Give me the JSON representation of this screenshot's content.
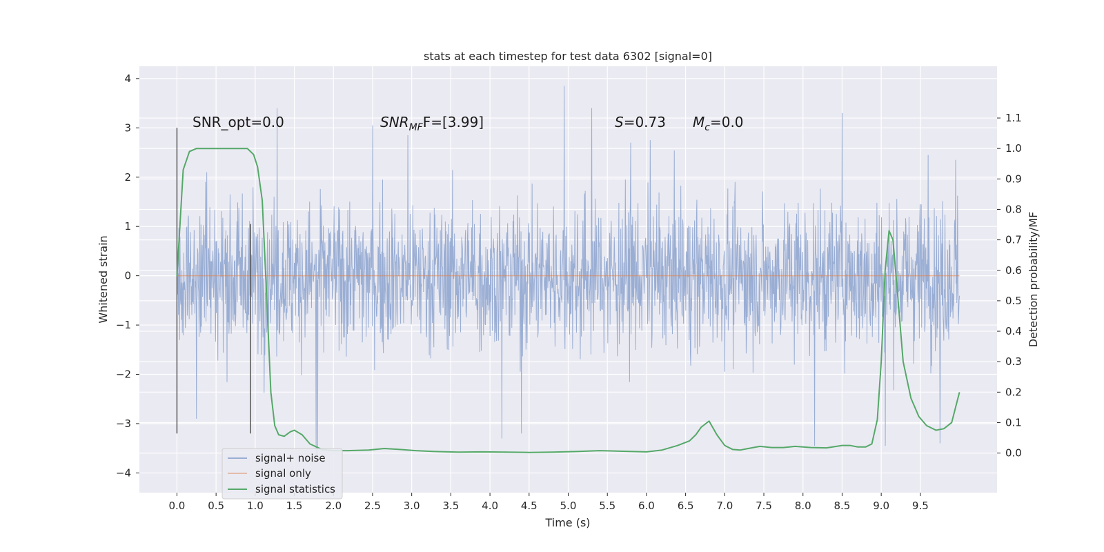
{
  "chart_data": {
    "type": "line",
    "title": "stats at each timestep for test data 6302 [signal=0]",
    "xlabel": "Time (s)",
    "ylabel": "Whitened strain",
    "y2label": "Detection probability/MF",
    "xlim": [
      -0.48,
      10.48
    ],
    "ylim": [
      -4.4,
      4.25
    ],
    "y2lim": [
      -0.13,
      1.27
    ],
    "x_ticks": [
      0.0,
      0.5,
      1.0,
      1.5,
      2.0,
      2.5,
      3.0,
      3.5,
      4.0,
      4.5,
      5.0,
      5.5,
      6.0,
      6.5,
      7.0,
      7.5,
      8.0,
      8.5,
      9.0,
      9.5
    ],
    "x_tick_labels": [
      "0.0",
      "0.5",
      "1.0",
      "1.5",
      "2.0",
      "2.5",
      "3.0",
      "3.5",
      "4.0",
      "4.5",
      "5.0",
      "5.5",
      "6.0",
      "6.5",
      "7.0",
      "7.5",
      "8.0",
      "8.5",
      "9.0",
      "9.5"
    ],
    "y_ticks": [
      -4,
      -3,
      -2,
      -1,
      0,
      1,
      2,
      3,
      4
    ],
    "y_tick_labels": [
      "−4",
      "−3",
      "−2",
      "−1",
      "0",
      "1",
      "2",
      "3",
      "4"
    ],
    "y2_ticks": [
      0.0,
      0.1,
      0.2,
      0.3,
      0.4,
      0.5,
      0.6,
      0.7,
      0.8,
      0.9,
      1.0,
      1.1
    ],
    "y2_tick_labels": [
      "0.0",
      "0.1",
      "0.2",
      "0.3",
      "0.4",
      "0.5",
      "0.6",
      "0.7",
      "0.8",
      "0.9",
      "1.0",
      "1.1"
    ],
    "grid": true,
    "legend_position": "bottom-left",
    "legend": [
      "signal+ noise",
      "signal only",
      "signal statistics"
    ],
    "annotations": {
      "snr_opt": "SNR_opt=0.0",
      "snr_mf_sym": "SNR",
      "snr_mf_sub": "MF",
      "snr_mf_val": "F=[3.99]",
      "s_sym": "S",
      "s_val": "=0.73",
      "mc_sym": "M",
      "mc_sub": "c",
      "mc_val": "=0.0"
    },
    "noise": {
      "x_start": 0.0,
      "x_end": 10.0,
      "y_range": [
        -3.7,
        3.85
      ],
      "notable_peaks": [
        [
          0.38,
          2.1
        ],
        [
          1.28,
          3.4
        ],
        [
          2.5,
          3.05
        ],
        [
          2.95,
          2.85
        ],
        [
          4.95,
          3.85
        ],
        [
          5.3,
          3.4
        ],
        [
          5.8,
          2.7
        ],
        [
          6.05,
          2.75
        ],
        [
          8.5,
          3.3
        ],
        [
          9.6,
          2.45
        ],
        [
          9.95,
          2.35
        ]
      ],
      "notable_troughs": [
        [
          1.8,
          -3.7
        ],
        [
          1.78,
          -3.65
        ],
        [
          4.15,
          -3.3
        ],
        [
          4.4,
          -3.2
        ],
        [
          8.15,
          -3.45
        ],
        [
          9.05,
          -3.45
        ],
        [
          9.75,
          -3.4
        ],
        [
          0.25,
          -2.9
        ]
      ]
    },
    "signal_only": {
      "x": [
        0.0,
        10.0
      ],
      "y": [
        0.0,
        0.0
      ]
    },
    "vertical_markers": [
      {
        "x": 0.0,
        "y": [
          -3.2,
          3.0
        ]
      },
      {
        "x": 0.94,
        "y": [
          -3.2,
          1.05
        ]
      }
    ],
    "series": [
      {
        "name": "signal statistics",
        "x": [
          0.0,
          0.08,
          0.16,
          0.25,
          0.4,
          0.55,
          0.7,
          0.8,
          0.9,
          0.98,
          1.03,
          1.09,
          1.14,
          1.2,
          1.25,
          1.3,
          1.37,
          1.45,
          1.5,
          1.6,
          1.7,
          1.85,
          2.0,
          2.2,
          2.45,
          2.65,
          2.85,
          3.05,
          3.3,
          3.6,
          3.9,
          4.2,
          4.5,
          4.8,
          5.1,
          5.4,
          5.7,
          6.0,
          6.2,
          6.4,
          6.55,
          6.63,
          6.7,
          6.8,
          6.9,
          7.0,
          7.1,
          7.2,
          7.3,
          7.45,
          7.6,
          7.75,
          7.9,
          8.1,
          8.3,
          8.5,
          8.6,
          8.7,
          8.8,
          8.88,
          8.95,
          9.0,
          9.05,
          9.1,
          9.15,
          9.2,
          9.28,
          9.38,
          9.48,
          9.58,
          9.7,
          9.8,
          9.9,
          10.0
        ],
        "y": [
          0.58,
          0.93,
          0.99,
          1.0,
          1.0,
          1.0,
          1.0,
          1.0,
          1.0,
          0.98,
          0.94,
          0.83,
          0.55,
          0.2,
          0.09,
          0.06,
          0.055,
          0.07,
          0.075,
          0.06,
          0.03,
          0.012,
          0.008,
          0.008,
          0.01,
          0.015,
          0.012,
          0.008,
          0.005,
          0.003,
          0.004,
          0.003,
          0.002,
          0.003,
          0.005,
          0.008,
          0.006,
          0.004,
          0.01,
          0.025,
          0.04,
          0.06,
          0.085,
          0.105,
          0.06,
          0.025,
          0.012,
          0.01,
          0.015,
          0.022,
          0.018,
          0.018,
          0.022,
          0.018,
          0.017,
          0.025,
          0.025,
          0.02,
          0.02,
          0.03,
          0.11,
          0.3,
          0.6,
          0.73,
          0.7,
          0.55,
          0.3,
          0.18,
          0.12,
          0.09,
          0.075,
          0.08,
          0.1,
          0.2
        ]
      }
    ],
    "colors": {
      "background": "#eaeaf2",
      "grid": "#ffffff",
      "noise": "#9aaed4",
      "signal_only": "#dd8452",
      "statistics": "#55a868",
      "marker": "#555555"
    }
  }
}
